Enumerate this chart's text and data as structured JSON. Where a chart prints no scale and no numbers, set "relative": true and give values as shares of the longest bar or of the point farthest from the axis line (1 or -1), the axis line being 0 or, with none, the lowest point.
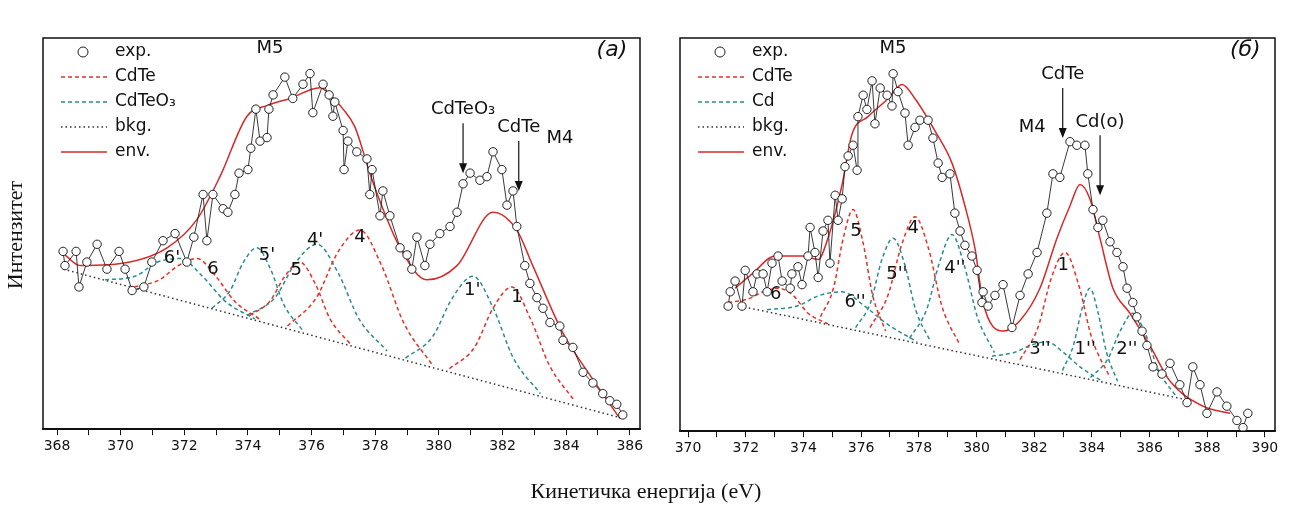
{
  "chart_data": [
    {
      "type": "line",
      "relative": true,
      "xlabel": "Кинетичка енергија (eV)",
      "ylabel": "Интензитет",
      "legend": "top left",
      "grid": false,
      "xlim": [
        367.56,
        386.32
      ],
      "xticks": [
        368,
        {
          "value": 369,
          "label": null
        },
        370,
        {
          "value": 371,
          "label": null
        },
        372,
        {
          "value": 373,
          "label": null
        },
        374,
        {
          "value": 375,
          "label": null
        },
        376,
        {
          "value": 377,
          "label": null
        },
        378,
        {
          "value": 379,
          "label": null
        },
        380,
        {
          "value": 381,
          "label": null
        },
        382,
        {
          "value": 383,
          "label": null
        },
        384,
        {
          "value": 385,
          "label": null
        },
        386
      ],
      "series": [
        {
          "name": "exp.",
          "color": "#222222",
          "marker": "circle",
          "line_style": "solid",
          "x": [
            368.19,
            368.25,
            368.6,
            368.69,
            368.94,
            369.26,
            369.57,
            369.95,
            370.14,
            370.36,
            370.73,
            370.98,
            371.33,
            371.71,
            372.08,
            372.3,
            372.59,
            372.71,
            372.9,
            373.22,
            373.37,
            373.59,
            373.72,
            374.0,
            374.09,
            374.25,
            374.38,
            374.6,
            374.66,
            374.79,
            375.16,
            375.41,
            375.73,
            375.95,
            376.04,
            376.36,
            376.55,
            376.67,
            376.73,
            376.99,
            377.02,
            377.14,
            377.42,
            377.74,
            377.83,
            377.9,
            378.15,
            378.24,
            378.46,
            378.78,
            379.0,
            379.15,
            379.31,
            379.56,
            379.72,
            380.03,
            380.35,
            380.57,
            380.76,
            380.98,
            381.29,
            381.51,
            381.7,
            381.98,
            382.14,
            382.33,
            382.45,
            382.7,
            382.86,
            383.08,
            383.27,
            383.49,
            383.8,
            383.9,
            384.21,
            384.53,
            384.84,
            385.15,
            385.37,
            385.59,
            385.78
          ],
          "values": [
            0.5,
            0.46,
            0.5,
            0.4,
            0.47,
            0.52,
            0.45,
            0.5,
            0.45,
            0.39,
            0.4,
            0.47,
            0.53,
            0.55,
            0.47,
            0.54,
            0.66,
            0.53,
            0.66,
            0.62,
            0.61,
            0.66,
            0.72,
            0.73,
            0.79,
            0.9,
            0.81,
            0.82,
            0.9,
            0.94,
            0.99,
            0.93,
            0.97,
            1,
            0.89,
            0.97,
            0.94,
            0.88,
            0.92,
            0.84,
            0.73,
            0.81,
            0.78,
            0.76,
            0.66,
            0.73,
            0.6,
            0.67,
            0.6,
            0.51,
            0.49,
            0.45,
            0.54,
            0.46,
            0.52,
            0.55,
            0.57,
            0.61,
            0.69,
            0.72,
            0.7,
            0.71,
            0.78,
            0.73,
            0.63,
            0.67,
            0.57,
            0.46,
            0.41,
            0.37,
            0.34,
            0.3,
            0.29,
            0.25,
            0.23,
            0.16,
            0.13,
            0.1,
            0.08,
            0.07,
            0.04
          ]
        },
        {
          "name": "CdTe",
          "color": "#e53028",
          "marker": "none",
          "line_style": "dashed",
          "x": [
            380.33,
            381.12,
            381.7,
            382.29,
            382.88,
            383.47,
            384.26
          ],
          "values": [
            0.17,
            0.23,
            0.34,
            0.4,
            0.31,
            0.18,
            0.08
          ]
        },
        {
          "name": "CdTeO₃",
          "color": "#2a8c8c",
          "marker": "none",
          "line_style": "dashed",
          "x": [
            378.95,
            379.8,
            380.43,
            381.07,
            381.71,
            382.34,
            383.19
          ],
          "values": [
            0.2,
            0.26,
            0.37,
            0.43,
            0.34,
            0.2,
            0.1
          ]
        },
        {
          "name": "bkg.",
          "color": "#333333",
          "marker": "none",
          "line_style": "dotted",
          "x": [
            368.2,
            385.8
          ],
          "values": [
            0.45,
            0.03
          ]
        },
        {
          "name": "env.",
          "color": "#d62a2a",
          "marker": "none",
          "line_style": "solid",
          "x": [
            368.25,
            368.72,
            370.29,
            371.46,
            372.4,
            373.12,
            373.97,
            374.6,
            375.32,
            376.26,
            376.58,
            376.99,
            377.36,
            377.83,
            378.24,
            378.78,
            379.62,
            380.57,
            381.7,
            382.45,
            382.95,
            383.9,
            384.84,
            385.69
          ],
          "values": [
            0.49,
            0.46,
            0.47,
            0.51,
            0.59,
            0.71,
            0.88,
            0.91,
            0.93,
            0.96,
            0.94,
            0.9,
            0.85,
            0.72,
            0.62,
            0.51,
            0.42,
            0.46,
            0.61,
            0.56,
            0.46,
            0.27,
            0.14,
            0.03
          ]
        },
        {
          "color": "#e53028",
          "marker": "none",
          "line_style": "dashed",
          "x": [
            375.24,
            376.15,
            376.84,
            377.52,
            378.2,
            378.89,
            379.8
          ],
          "values": [
            0.29,
            0.37,
            0.5,
            0.56,
            0.46,
            0.3,
            0.18
          ]
        },
        {
          "color": "#e53028",
          "marker": "none",
          "line_style": "dashed",
          "x": [
            374.06,
            374.69,
            375.16,
            375.63,
            376.11,
            376.58,
            377.21
          ],
          "values": [
            0.32,
            0.36,
            0.43,
            0.47,
            0.41,
            0.31,
            0.24
          ]
        },
        {
          "color": "#e53028",
          "marker": "none",
          "line_style": "dashed",
          "x": [
            370.43,
            371.22,
            371.81,
            372.4,
            372.99,
            373.58,
            374.36
          ],
          "values": [
            0.4,
            0.42,
            0.46,
            0.48,
            0.43,
            0.36,
            0.31
          ]
        },
        {
          "color": "#2a8c8c",
          "marker": "none",
          "line_style": "dashed",
          "x": [
            373.97,
            374.85,
            375.51,
            376.17,
            376.83,
            377.49,
            378.37
          ],
          "values": [
            0.32,
            0.37,
            0.47,
            0.52,
            0.44,
            0.31,
            0.22
          ]
        },
        {
          "color": "#2a8c8c",
          "marker": "none",
          "line_style": "dashed",
          "x": [
            372.87,
            373.44,
            373.86,
            374.28,
            374.71,
            375.13,
            375.7
          ],
          "values": [
            0.34,
            0.39,
            0.47,
            0.51,
            0.45,
            0.35,
            0.28
          ]
        },
        {
          "color": "#2a8c8c",
          "marker": "none",
          "line_style": "dashed",
          "x": [
            369.51,
            370.45,
            371.16,
            371.86,
            372.57,
            373.28,
            374.22
          ],
          "values": [
            0.42,
            0.43,
            0.47,
            0.48,
            0.43,
            0.36,
            0.31
          ]
        }
      ],
      "annotations": [
        "(а)",
        "M5",
        {
          "text": "CdTeO₃",
          "x": 380.76,
          "y": 0.72
        },
        {
          "text": "CdTe",
          "x": 382.51,
          "y": 0.67
        },
        "M4",
        {
          "text": "1",
          "x": 382.45,
          "y": 0.37
        },
        "1'",
        "4",
        {
          "text": "4'",
          "x": 376.11,
          "y": 0.53
        },
        "5",
        {
          "text": "5'",
          "x": 374.6,
          "y": 0.49
        },
        {
          "text": "6",
          "x": 372.9,
          "y": 0.45
        },
        {
          "text": "6'",
          "x": 371.61,
          "y": 0.48
        }
      ]
    },
    {
      "type": "line",
      "relative": true,
      "legend": "top left",
      "grid": false,
      "xlim": [
        369.72,
        390.35
      ],
      "xticks": [
        370,
        {
          "value": 371,
          "label": null
        },
        372,
        {
          "value": 373,
          "label": null
        },
        374,
        {
          "value": 375,
          "label": null
        },
        376,
        {
          "value": 377,
          "label": null
        },
        378,
        {
          "value": 379,
          "label": null
        },
        380,
        {
          "value": 381,
          "label": null
        },
        382,
        {
          "value": 383,
          "label": null
        },
        384,
        {
          "value": 385,
          "label": null
        },
        386,
        {
          "value": 387,
          "label": null
        },
        388,
        {
          "value": 389,
          "label": null
        },
        390
      ],
      "series": [
        {
          "name": "exp.",
          "color": "#222222",
          "marker": "circle",
          "line_style": "solid",
          "x": [
            371.39,
            371.46,
            371.63,
            371.87,
            371.98,
            372.25,
            372.39,
            372.6,
            372.74,
            372.91,
            373.12,
            373.26,
            373.54,
            373.6,
            373.81,
            373.95,
            374.16,
            374.23,
            374.4,
            374.51,
            374.68,
            374.85,
            374.92,
            375.1,
            375.2,
            375.34,
            375.44,
            375.55,
            375.72,
            375.86,
            375.89,
            376.07,
            376.2,
            376.38,
            376.48,
            376.66,
            376.9,
            377.07,
            377.11,
            377.28,
            377.52,
            377.63,
            377.87,
            378.04,
            378.32,
            378.49,
            378.67,
            378.81,
            379.08,
            379.25,
            379.43,
            379.6,
            379.84,
            380.02,
            380.19,
            380.23,
            380.4,
            380.64,
            380.92,
            381.23,
            381.51,
            381.79,
            382.1,
            382.44,
            382.65,
            382.89,
            383.24,
            383.48,
            383.76,
            383.86,
            384.04,
            384.21,
            384.38,
            384.63,
            384.87,
            385.08,
            385.22,
            385.42,
            385.56,
            385.74,
            385.91,
            386.12,
            386.43,
            386.71,
            387.05,
            387.3,
            387.5,
            387.75,
            387.99,
            388.34,
            388.68,
            389.03,
            389.24,
            389.41
          ],
          "values": [
            0.35,
            0.39,
            0.42,
            0.35,
            0.45,
            0.39,
            0.44,
            0.44,
            0.39,
            0.47,
            0.49,
            0.42,
            0.4,
            0.44,
            0.46,
            0.41,
            0.49,
            0.57,
            0.5,
            0.43,
            0.56,
            0.59,
            0.47,
            0.66,
            0.59,
            0.65,
            0.74,
            0.77,
            0.8,
            0.73,
            0.88,
            0.94,
            0.9,
            0.98,
            0.86,
            0.96,
            0.94,
            0.91,
            1,
            0.95,
            0.89,
            0.8,
            0.85,
            0.87,
            0.87,
            0.82,
            0.75,
            0.71,
            0.72,
            0.61,
            0.56,
            0.52,
            0.49,
            0.45,
            0.36,
            0.39,
            0.35,
            0.38,
            0.41,
            0.29,
            0.38,
            0.44,
            0.5,
            0.61,
            0.72,
            0.71,
            0.81,
            0.8,
            0.8,
            0.72,
            0.62,
            0.57,
            0.59,
            0.53,
            0.5,
            0.46,
            0.4,
            0.36,
            0.32,
            0.28,
            0.24,
            0.18,
            0.16,
            0.19,
            0.13,
            0.08,
            0.18,
            0.13,
            0.05,
            0.11,
            0.07,
            0.03,
            0.01,
            0.05
          ]
        },
        {
          "name": "CdTe",
          "color": "#e53028",
          "marker": "none",
          "line_style": "dashed",
          "x": [
            374.59,
            375.04,
            375.38,
            375.72,
            376.06,
            376.4,
            376.85
          ],
          "values": [
            0.32,
            0.4,
            0.54,
            0.62,
            0.53,
            0.38,
            0.28
          ]
        },
        {
          "name": "Cd",
          "color": "#2a8c8c",
          "marker": "none",
          "line_style": "dashed",
          "x": [
            372.74,
            373.78,
            374.56,
            375.34,
            376.12,
            376.9,
            377.94
          ],
          "values": [
            0.34,
            0.35,
            0.38,
            0.39,
            0.35,
            0.3,
            0.25
          ]
        },
        {
          "name": "bkg.",
          "color": "#333333",
          "marker": "none",
          "line_style": "dotted",
          "x": [
            371.8,
            387.16
          ],
          "values": [
            0.35,
            0.09
          ]
        },
        {
          "name": "env.",
          "color": "#d62a2a",
          "marker": "none",
          "line_style": "solid",
          "x": [
            371.63,
            372.22,
            373.02,
            373.95,
            374.51,
            374.85,
            375.34,
            375.68,
            376.24,
            376.93,
            377.42,
            377.87,
            378.56,
            379.15,
            379.6,
            379.95,
            380.23,
            380.92,
            381.51,
            382.2,
            382.79,
            383.24,
            383.59,
            383.93,
            384.28,
            384.73,
            385.32,
            386.01,
            386.71,
            387.85,
            388.79
          ],
          "values": [
            0.4,
            0.44,
            0.49,
            0.49,
            0.48,
            0.54,
            0.69,
            0.83,
            0.88,
            0.93,
            0.97,
            0.93,
            0.84,
            0.75,
            0.63,
            0.51,
            0.36,
            0.28,
            0.31,
            0.4,
            0.54,
            0.63,
            0.69,
            0.65,
            0.54,
            0.4,
            0.33,
            0.24,
            0.14,
            0.07,
            0.05
          ]
        },
        {
          "color": "#e53028",
          "marker": "none",
          "line_style": "dashed",
          "x": [
            376.31,
            376.93,
            377.4,
            377.87,
            378.34,
            378.8,
            379.43
          ],
          "values": [
            0.29,
            0.38,
            0.52,
            0.6,
            0.51,
            0.35,
            0.24
          ]
        },
        {
          "color": "#e53028",
          "marker": "none",
          "line_style": "dashed",
          "x": [
            371.39,
            372.08,
            372.6,
            373.12,
            373.64,
            374.16,
            374.85
          ],
          "values": [
            0.36,
            0.37,
            0.39,
            0.4,
            0.38,
            0.33,
            0.3
          ]
        },
        {
          "color": "#e53028",
          "marker": "none",
          "line_style": "dashed",
          "x": [
            381.51,
            382.13,
            382.6,
            383.07,
            383.54,
            384.0,
            384.63
          ],
          "values": [
            0.2,
            0.29,
            0.43,
            0.5,
            0.41,
            0.26,
            0.15
          ]
        },
        {
          "color": "#2a8c8c",
          "marker": "none",
          "line_style": "dashed",
          "x": [
            375.81,
            376.33,
            376.72,
            377.11,
            377.5,
            377.89,
            378.41
          ],
          "values": [
            0.29,
            0.36,
            0.48,
            0.54,
            0.47,
            0.34,
            0.25
          ]
        },
        {
          "color": "#2a8c8c",
          "marker": "none",
          "line_style": "dashed",
          "x": [
            377.68,
            378.27,
            378.71,
            379.15,
            379.59,
            380.03,
            380.62
          ],
          "values": [
            0.26,
            0.34,
            0.47,
            0.55,
            0.46,
            0.32,
            0.22
          ]
        },
        {
          "color": "#2a8c8c",
          "marker": "none",
          "line_style": "dashed",
          "x": [
            380.54,
            381.3,
            381.87,
            382.44,
            383.02,
            383.59,
            384.35
          ],
          "values": [
            0.21,
            0.22,
            0.24,
            0.25,
            0.22,
            0.18,
            0.14
          ]
        },
        {
          "color": "#2a8c8c",
          "marker": "none",
          "line_style": "dashed",
          "x": [
            382.98,
            383.36,
            383.65,
            383.93,
            384.22,
            384.51,
            384.89
          ],
          "values": [
            0.17,
            0.24,
            0.34,
            0.4,
            0.33,
            0.22,
            0.14
          ]
        },
        {
          "color": "#2a8c8c",
          "marker": "none",
          "line_style": "dashed",
          "x": [
            383.95,
            384.54,
            384.98,
            385.42,
            385.87,
            386.31,
            386.9
          ],
          "values": [
            0.15,
            0.2,
            0.28,
            0.33,
            0.27,
            0.17,
            0.1
          ]
        }
      ],
      "annotations": [
        "(б)",
        "M5",
        {
          "text": "CdTe",
          "x": 382.99,
          "y": 0.82
        },
        "Cd(o)",
        "M4",
        {
          "text": "5",
          "x": 375.82,
          "y": 0.56
        },
        "4",
        {
          "text": "5''",
          "x": 377.24,
          "y": 0.44
        },
        "4''",
        "6",
        {
          "text": "6''",
          "x": 375.79,
          "y": 0.36
        },
        "1",
        "3''",
        "1''",
        "2''"
      ]
    }
  ]
}
